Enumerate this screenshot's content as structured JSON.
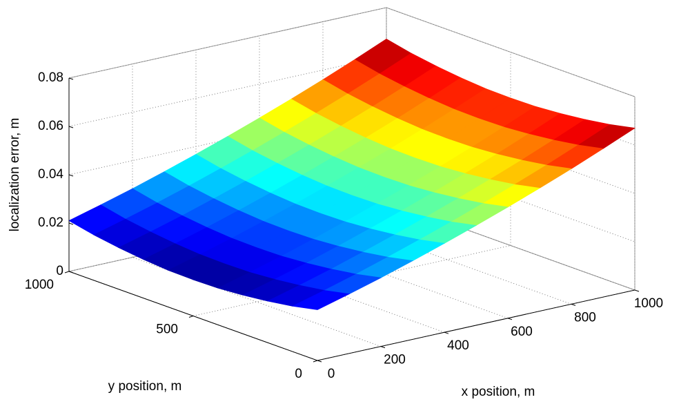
{
  "chart_data": {
    "type": "surface",
    "xlabel": "x position, m",
    "ylabel": "y position, m",
    "zlabel": "localization error, m",
    "x": [
      0,
      100,
      200,
      300,
      400,
      500,
      600,
      700,
      800,
      900,
      1000
    ],
    "y": [
      0,
      100,
      200,
      300,
      400,
      500,
      600,
      700,
      800,
      900,
      1000
    ],
    "z": [
      [
        0.021,
        0.0246,
        0.0284,
        0.0325,
        0.0368,
        0.0413,
        0.046,
        0.0509,
        0.056,
        0.0614,
        0.067
      ],
      [
        0.0188,
        0.0224,
        0.0262,
        0.0303,
        0.0346,
        0.0391,
        0.0438,
        0.0487,
        0.0538,
        0.0592,
        0.0648
      ],
      [
        0.0172,
        0.0208,
        0.0246,
        0.0287,
        0.033,
        0.0375,
        0.0422,
        0.0471,
        0.0522,
        0.0576,
        0.0632
      ],
      [
        0.016,
        0.0196,
        0.0234,
        0.0275,
        0.0318,
        0.0363,
        0.041,
        0.0459,
        0.051,
        0.0564,
        0.062
      ],
      [
        0.0152,
        0.0188,
        0.0226,
        0.0267,
        0.031,
        0.0355,
        0.0402,
        0.0451,
        0.0502,
        0.0556,
        0.0612
      ],
      [
        0.015,
        0.0186,
        0.0224,
        0.0265,
        0.0308,
        0.0353,
        0.04,
        0.0449,
        0.05,
        0.0554,
        0.061
      ],
      [
        0.0152,
        0.0188,
        0.0226,
        0.0267,
        0.031,
        0.0355,
        0.0402,
        0.0451,
        0.0502,
        0.0556,
        0.0612
      ],
      [
        0.016,
        0.0196,
        0.0234,
        0.0275,
        0.0318,
        0.0363,
        0.041,
        0.0459,
        0.051,
        0.0564,
        0.062
      ],
      [
        0.0172,
        0.0208,
        0.0246,
        0.0287,
        0.033,
        0.0375,
        0.0422,
        0.0471,
        0.0522,
        0.0576,
        0.0632
      ],
      [
        0.0188,
        0.0224,
        0.0262,
        0.0303,
        0.0346,
        0.0391,
        0.0438,
        0.0487,
        0.0538,
        0.0592,
        0.0648
      ],
      [
        0.021,
        0.0246,
        0.0284,
        0.0325,
        0.0368,
        0.0413,
        0.046,
        0.0509,
        0.056,
        0.0614,
        0.067
      ]
    ],
    "xlim": [
      0,
      1000
    ],
    "ylim": [
      0,
      1000
    ],
    "zlim": [
      0,
      0.08
    ],
    "xticks": [
      0,
      200,
      400,
      600,
      800,
      1000
    ],
    "yticks": [
      0,
      500,
      1000
    ],
    "zticks": [
      0,
      0.02,
      0.04,
      0.06,
      0.08
    ],
    "colormap": "jet",
    "grid": true
  }
}
